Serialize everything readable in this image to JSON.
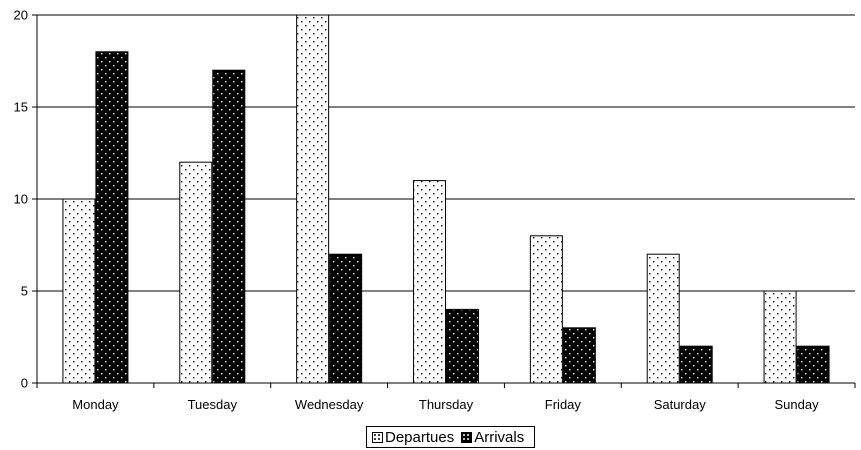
{
  "chart_data": {
    "type": "bar",
    "categories": [
      "Monday",
      "Tuesday",
      "Wednesday",
      "Thursday",
      "Friday",
      "Saturday",
      "Sunday"
    ],
    "series": [
      {
        "name": "Departues",
        "values": [
          10,
          12,
          20,
          11,
          8,
          7,
          5
        ],
        "pattern": "dotted-light",
        "fill": "#ffffff",
        "dot": "#000000"
      },
      {
        "name": "Arrivals",
        "values": [
          18,
          17,
          7,
          4,
          3,
          2,
          2
        ],
        "pattern": "dotted-dark",
        "fill": "#000000",
        "dot": "#ffffff"
      }
    ],
    "yticks": [
      "0",
      "5",
      "10",
      "15",
      "20"
    ],
    "ylim": [
      0,
      20
    ],
    "grid": true,
    "legend": "bottom-center"
  }
}
